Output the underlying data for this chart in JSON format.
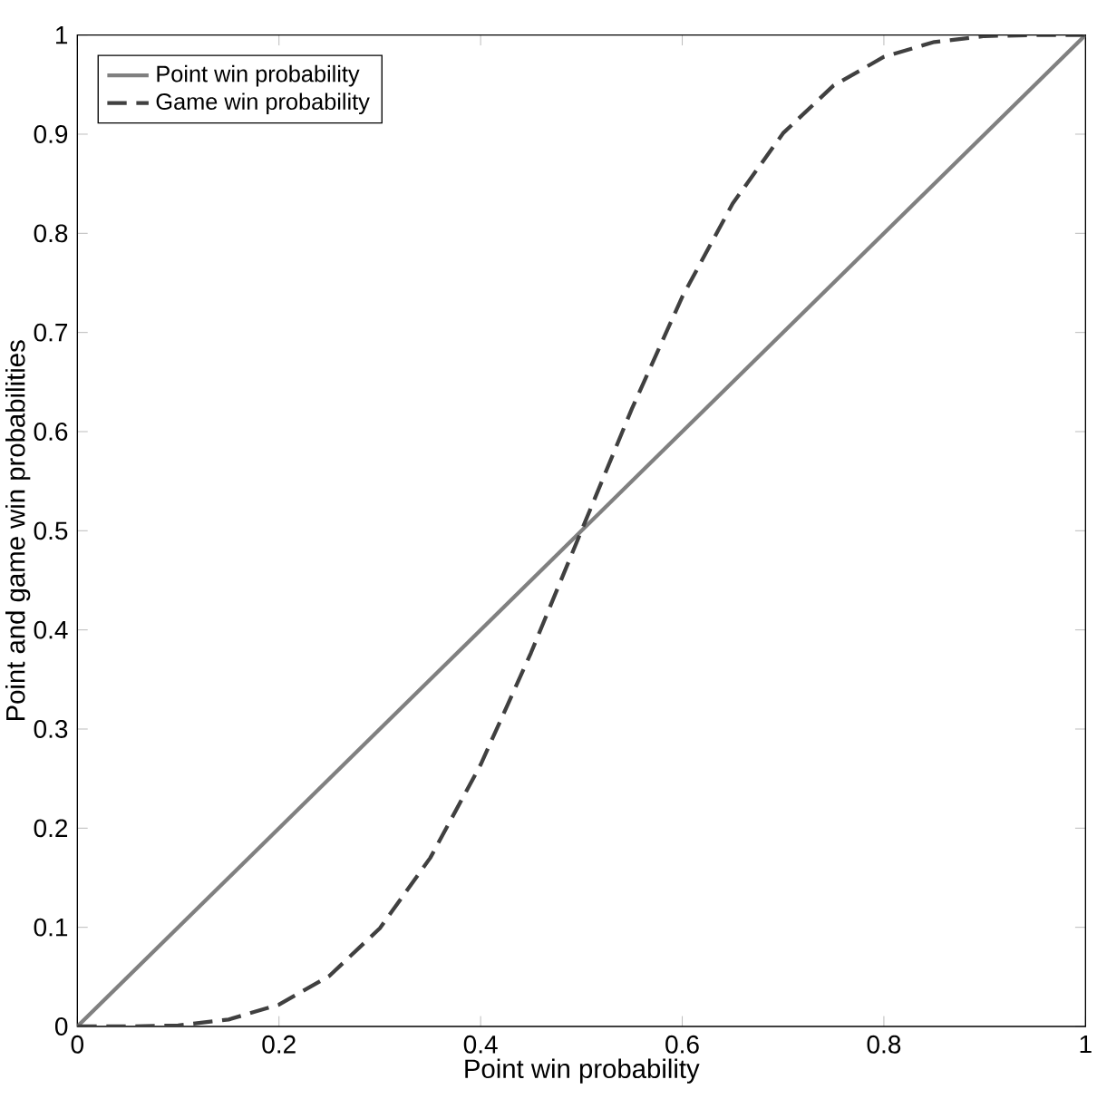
{
  "chart_data": {
    "type": "line",
    "xlabel": "Point win probability",
    "ylabel": "Point and game win probabilities",
    "series": [
      {
        "name": "Point win probability",
        "color": "#808080",
        "line_style": "solid",
        "x": [
          0,
          1
        ],
        "values": [
          0,
          1
        ]
      },
      {
        "name": "Game win probability",
        "color": "#404040",
        "line_style": "dashed",
        "x": [
          0,
          0.05,
          0.1,
          0.15,
          0.2,
          0.25,
          0.3,
          0.35,
          0.4,
          0.45,
          0.5,
          0.55,
          0.6,
          0.65,
          0.7,
          0.75,
          0.8,
          0.85,
          0.9,
          0.95,
          1
        ],
        "values": [
          0,
          0.0,
          0.001,
          0.007,
          0.022,
          0.051,
          0.099,
          0.17,
          0.264,
          0.377,
          0.5,
          0.623,
          0.736,
          0.83,
          0.901,
          0.949,
          0.978,
          0.993,
          0.999,
          1.0,
          1
        ]
      }
    ],
    "xlim": [
      0,
      1
    ],
    "ylim": [
      0,
      1
    ],
    "xticks": [
      0,
      0.2,
      0.4,
      0.6,
      0.8,
      1
    ],
    "yticks": [
      0,
      0.1,
      0.2,
      0.3,
      0.4,
      0.5,
      0.6,
      0.7,
      0.8,
      0.9,
      1
    ],
    "legend": "top left",
    "grid": false,
    "marker": "none"
  }
}
